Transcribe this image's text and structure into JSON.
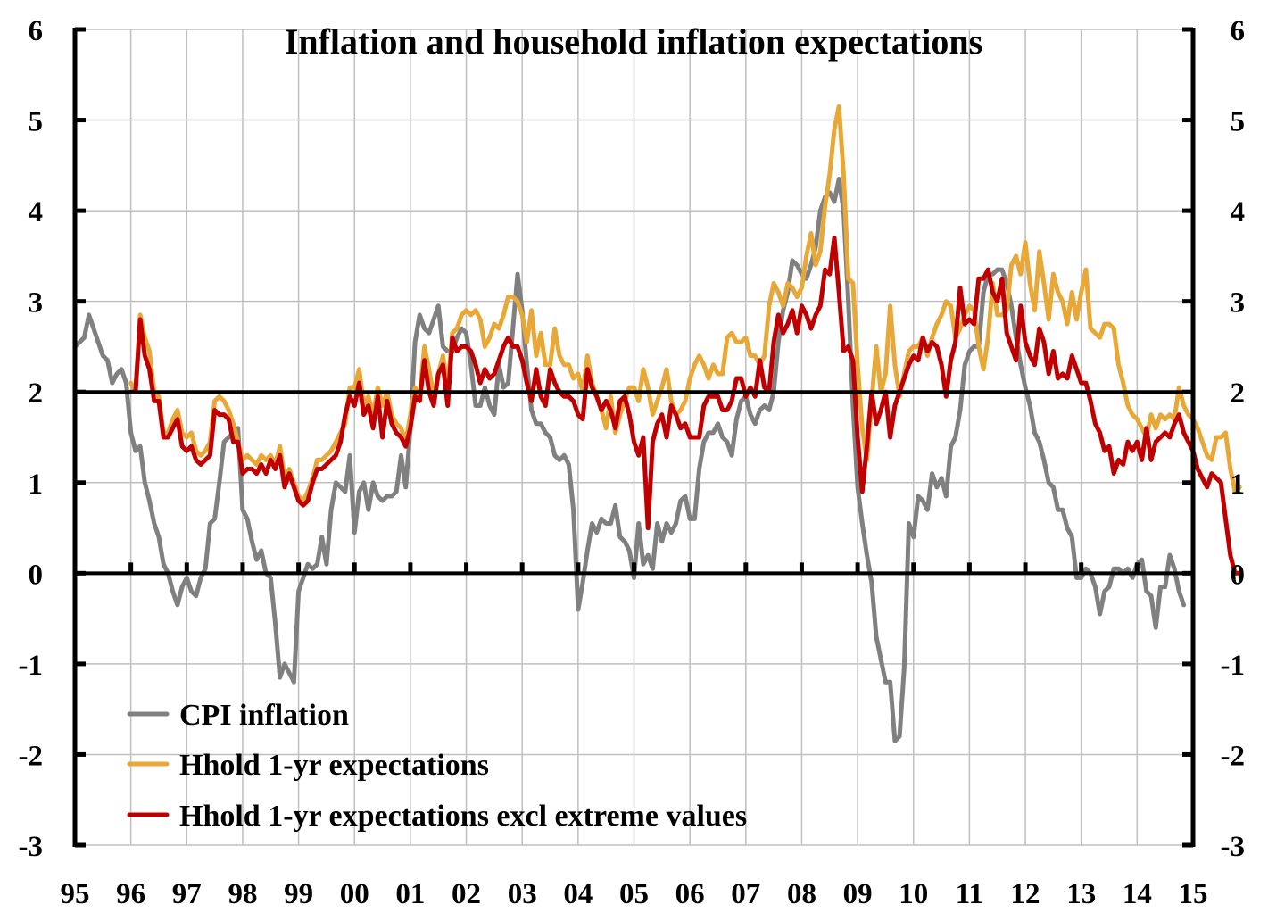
{
  "chart_data": {
    "type": "line",
    "title": "Inflation and household inflation expectations",
    "xlabel": "",
    "ylabel": "",
    "ylim": [
      -3,
      6
    ],
    "yticks": [
      "-3",
      "-2",
      "-1",
      "0",
      "1",
      "2",
      "3",
      "4",
      "5",
      "6"
    ],
    "yticks_right": [
      "-3",
      "-2",
      "-1",
      "0",
      "1",
      "2",
      "3",
      "4",
      "5",
      "6"
    ],
    "xlim": [
      1995,
      2015
    ],
    "xticks": [
      "95",
      "96",
      "97",
      "98",
      "99",
      "00",
      "01",
      "02",
      "03",
      "04",
      "05",
      "06",
      "07",
      "08",
      "09",
      "10",
      "11",
      "12",
      "13",
      "14",
      "15"
    ],
    "grid": true,
    "reference_lines": [
      0,
      2
    ],
    "legend_position": "bottom-left",
    "frequency": "monthly",
    "series": [
      {
        "name": "CPI inflation",
        "color": "#808080",
        "start": 1995.0,
        "values": [
          2.5,
          2.55,
          2.6,
          2.85,
          2.7,
          2.55,
          2.4,
          2.35,
          2.1,
          2.2,
          2.25,
          2.1,
          1.55,
          1.35,
          1.4,
          1.0,
          0.8,
          0.55,
          0.4,
          0.1,
          0.0,
          -0.2,
          -0.35,
          -0.15,
          -0.05,
          -0.2,
          -0.25,
          -0.05,
          0.05,
          0.55,
          0.6,
          1.0,
          1.45,
          1.5,
          1.55,
          1.6,
          0.7,
          0.6,
          0.35,
          0.15,
          0.25,
          0.0,
          -0.05,
          -0.55,
          -1.15,
          -1.0,
          -1.1,
          -1.2,
          -0.2,
          -0.05,
          0.1,
          0.05,
          0.1,
          0.4,
          0.1,
          0.7,
          1.0,
          0.95,
          0.9,
          1.3,
          0.45,
          0.9,
          1.0,
          0.7,
          1.0,
          0.85,
          0.8,
          0.85,
          0.85,
          0.9,
          1.3,
          0.95,
          1.6,
          2.55,
          2.85,
          2.7,
          2.65,
          2.8,
          2.95,
          2.5,
          2.45,
          2.45,
          2.6,
          2.7,
          2.65,
          2.3,
          1.85,
          1.85,
          2.05,
          1.85,
          1.75,
          2.3,
          2.05,
          2.1,
          2.7,
          3.3,
          2.9,
          2.3,
          1.8,
          1.65,
          1.65,
          1.55,
          1.5,
          1.3,
          1.25,
          1.3,
          1.2,
          0.7,
          -0.4,
          -0.1,
          0.25,
          0.55,
          0.45,
          0.6,
          0.55,
          0.55,
          0.75,
          0.4,
          0.35,
          0.25,
          -0.05,
          0.55,
          0.1,
          0.2,
          0.05,
          0.55,
          0.35,
          0.55,
          0.45,
          0.55,
          0.8,
          0.85,
          0.6,
          0.6,
          1.15,
          1.45,
          1.55,
          1.55,
          1.65,
          1.5,
          1.45,
          1.3,
          1.7,
          1.9,
          1.95,
          1.75,
          1.65,
          1.8,
          1.85,
          1.8,
          2.0,
          2.55,
          2.9,
          3.1,
          3.45,
          3.4,
          3.3,
          3.25,
          3.4,
          3.6,
          4.0,
          4.15,
          4.2,
          4.1,
          4.35,
          4.0,
          3.0,
          1.85,
          0.95,
          0.55,
          0.2,
          -0.1,
          -0.7,
          -0.95,
          -1.2,
          -1.2,
          -1.85,
          -1.8,
          -1.05,
          0.55,
          0.4,
          0.85,
          0.8,
          0.7,
          1.1,
          0.95,
          1.05,
          0.85,
          1.4,
          1.5,
          1.8,
          2.3,
          2.45,
          2.5,
          2.5,
          3.1,
          3.3,
          3.3,
          3.35,
          3.35,
          3.2,
          2.95,
          2.6,
          2.3,
          2.05,
          1.85,
          1.55,
          1.45,
          1.25,
          1.0,
          0.95,
          0.7,
          0.7,
          0.5,
          0.4,
          -0.05,
          -0.05,
          0.05,
          0.0,
          -0.15,
          -0.45,
          -0.2,
          -0.15,
          0.05,
          0.05,
          0.0,
          0.05,
          -0.05,
          0.1,
          0.15,
          -0.2,
          -0.25,
          -0.6,
          -0.15,
          -0.15,
          0.2,
          0.05,
          -0.2,
          -0.35
        ]
      },
      {
        "name": "Hhold 1-yr expectations",
        "color": "#E8A838",
        "start": 1996.0,
        "values": [
          2.1,
          2.0,
          2.85,
          2.6,
          2.45,
          2.0,
          1.95,
          1.55,
          1.55,
          1.7,
          1.8,
          1.55,
          1.5,
          1.55,
          1.35,
          1.3,
          1.35,
          1.45,
          1.9,
          1.95,
          1.9,
          1.8,
          1.65,
          1.45,
          1.25,
          1.3,
          1.25,
          1.2,
          1.3,
          1.25,
          1.3,
          1.2,
          1.4,
          1.05,
          1.15,
          1.0,
          0.85,
          0.8,
          0.9,
          1.05,
          1.25,
          1.25,
          1.3,
          1.35,
          1.45,
          1.55,
          1.65,
          2.05,
          2.05,
          2.25,
          1.85,
          1.95,
          1.75,
          2.05,
          1.85,
          2.0,
          1.75,
          1.65,
          1.6,
          1.45,
          1.75,
          2.05,
          1.95,
          2.5,
          2.25,
          1.95,
          2.2,
          2.4,
          2.05,
          2.65,
          2.7,
          2.85,
          2.9,
          2.85,
          2.9,
          2.8,
          2.5,
          2.6,
          2.75,
          2.7,
          2.85,
          3.05,
          3.05,
          3.0,
          2.85,
          2.55,
          2.9,
          2.4,
          2.65,
          2.3,
          2.3,
          2.7,
          2.4,
          2.3,
          2.3,
          2.15,
          2.2,
          2.0,
          2.4,
          2.1,
          1.95,
          1.8,
          1.6,
          1.95,
          1.55,
          1.75,
          1.9,
          2.05,
          2.05,
          1.9,
          2.25,
          2.05,
          1.75,
          1.9,
          2.05,
          2.25,
          1.9,
          1.75,
          1.8,
          1.9,
          2.15,
          2.3,
          2.4,
          2.3,
          2.15,
          2.3,
          2.2,
          2.2,
          2.6,
          2.65,
          2.55,
          2.55,
          2.6,
          2.4,
          2.4,
          2.3,
          2.4,
          2.95,
          3.2,
          3.1,
          2.95,
          3.2,
          3.15,
          3.05,
          3.15,
          3.5,
          3.75,
          3.4,
          3.55,
          4.05,
          4.4,
          4.9,
          5.15,
          4.4,
          3.25,
          3.2,
          2.3,
          1.6,
          1.25,
          1.9,
          2.5,
          2.0,
          2.2,
          2.95,
          2.3,
          1.95,
          2.2,
          2.45,
          2.5,
          2.5,
          2.6,
          2.4,
          2.6,
          2.75,
          2.85,
          3.0,
          2.95,
          2.6,
          2.7,
          2.85,
          2.95,
          2.9,
          2.5,
          2.25,
          2.6,
          3.2,
          2.85,
          2.85,
          2.9,
          3.4,
          3.5,
          3.3,
          3.65,
          3.2,
          2.9,
          3.55,
          3.2,
          2.8,
          3.3,
          3.1,
          3.0,
          2.75,
          3.1,
          2.8,
          3.1,
          3.35,
          2.7,
          2.65,
          2.6,
          2.75,
          2.75,
          2.7,
          2.3,
          2.1,
          1.85,
          1.75,
          1.7,
          1.6,
          1.5,
          1.75,
          1.6,
          1.75,
          1.7,
          1.75,
          1.7,
          2.05,
          1.85,
          1.75,
          1.7,
          1.6,
          1.45,
          1.3,
          1.25,
          1.5,
          1.5,
          1.55,
          1.15,
          0.9,
          0.95
        ]
      },
      {
        "name": "Hhold 1-yr expectations excl extreme values",
        "color": "#C00000",
        "start": 1996.0,
        "values": [
          2.0,
          2.0,
          2.8,
          2.4,
          2.25,
          1.9,
          1.9,
          1.5,
          1.5,
          1.6,
          1.7,
          1.4,
          1.35,
          1.4,
          1.25,
          1.2,
          1.25,
          1.3,
          1.8,
          1.75,
          1.75,
          1.7,
          1.45,
          1.45,
          1.1,
          1.15,
          1.15,
          1.1,
          1.2,
          1.1,
          1.25,
          1.15,
          1.3,
          0.95,
          1.1,
          0.95,
          0.8,
          0.75,
          0.8,
          1.0,
          1.15,
          1.15,
          1.2,
          1.25,
          1.3,
          1.45,
          1.75,
          1.95,
          1.85,
          2.1,
          1.75,
          1.85,
          1.6,
          1.95,
          1.5,
          1.9,
          1.65,
          1.55,
          1.5,
          1.4,
          1.6,
          1.95,
          1.9,
          2.35,
          2.0,
          1.85,
          2.2,
          2.3,
          1.85,
          2.6,
          2.45,
          2.5,
          2.5,
          2.45,
          2.3,
          2.1,
          2.25,
          2.15,
          2.2,
          2.35,
          2.5,
          2.6,
          2.5,
          2.5,
          2.35,
          2.1,
          1.9,
          2.25,
          1.95,
          1.85,
          2.25,
          2.1,
          2.0,
          1.95,
          1.95,
          1.9,
          1.75,
          1.7,
          2.25,
          2.05,
          1.95,
          1.8,
          1.9,
          1.8,
          1.6,
          1.9,
          1.95,
          1.75,
          1.45,
          1.3,
          1.5,
          0.5,
          1.45,
          1.65,
          1.75,
          1.5,
          1.85,
          1.75,
          1.6,
          1.65,
          1.5,
          1.5,
          1.5,
          1.85,
          1.95,
          1.95,
          1.95,
          1.8,
          1.8,
          1.9,
          2.15,
          2.15,
          1.95,
          2.05,
          1.95,
          2.35,
          2.05,
          2.0,
          2.55,
          2.85,
          2.65,
          2.75,
          2.9,
          2.65,
          2.95,
          2.85,
          2.7,
          2.85,
          2.95,
          3.35,
          3.3,
          3.7,
          3.1,
          2.45,
          2.5,
          2.35,
          1.5,
          0.9,
          1.4,
          2.0,
          1.65,
          1.8,
          2.0,
          1.5,
          1.85,
          2.0,
          2.15,
          2.3,
          2.4,
          2.35,
          2.6,
          2.45,
          2.55,
          2.5,
          2.3,
          1.95,
          2.35,
          2.55,
          3.15,
          2.75,
          2.8,
          2.75,
          3.25,
          3.25,
          3.35,
          3.1,
          3.0,
          3.25,
          2.65,
          2.5,
          2.35,
          2.95,
          2.55,
          2.4,
          2.3,
          2.7,
          2.55,
          2.2,
          2.45,
          2.15,
          2.2,
          2.15,
          2.4,
          2.25,
          2.1,
          2.1,
          1.9,
          1.65,
          1.55,
          1.35,
          1.4,
          1.1,
          1.25,
          1.2,
          1.45,
          1.35,
          1.45,
          1.25,
          1.6,
          1.25,
          1.45,
          1.5,
          1.55,
          1.5,
          1.65,
          1.75,
          1.55,
          1.45,
          1.35,
          1.15,
          1.05,
          0.95,
          1.1,
          1.05,
          1.0,
          0.6,
          0.2,
          0.0,
          0.0
        ]
      }
    ]
  }
}
